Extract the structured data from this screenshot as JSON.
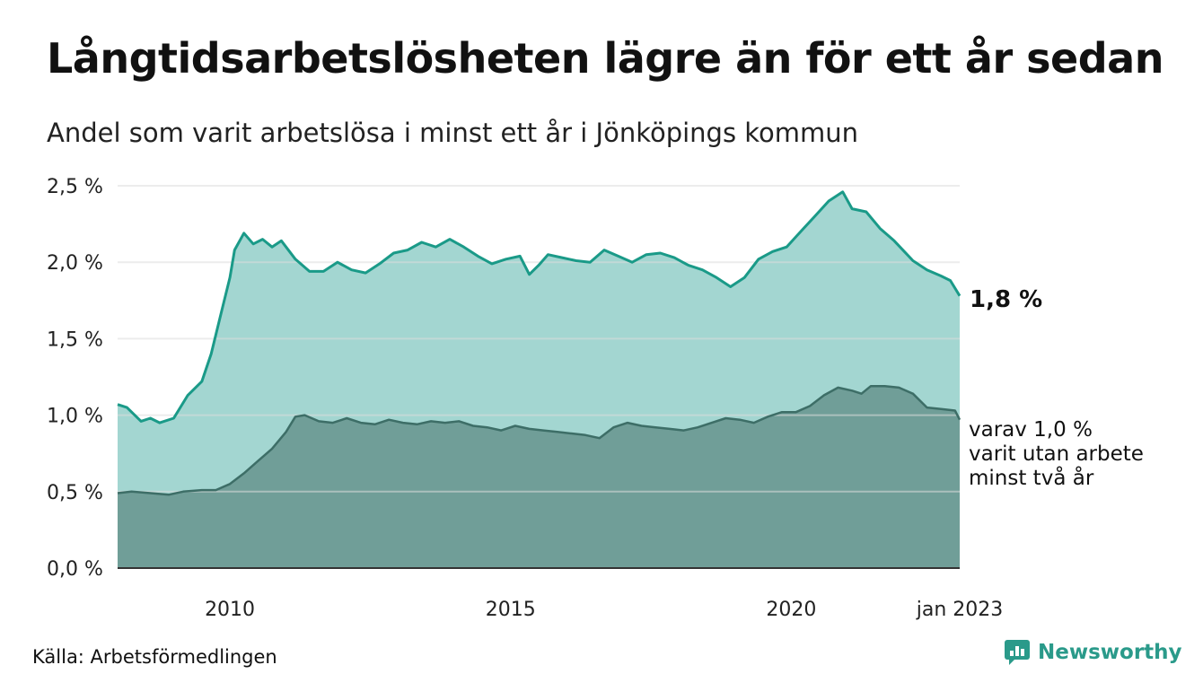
{
  "header": {
    "title": "Långtidsarbetslösheten lägre än för ett år sedan",
    "subtitle": "Andel som varit arbetslösa i minst ett år i Jönköpings kommun"
  },
  "footer": {
    "source": "Källa: Arbetsförmedlingen",
    "brand": "Newsworthy"
  },
  "colors": {
    "total_line": "#1a9a88",
    "total_fill": "#a3d6d1",
    "longterm_line": "#3d6e67",
    "longterm_fill": "#709e98",
    "grid": "#dddddd",
    "brand": "#2a9a8a"
  },
  "chart_data": {
    "type": "area",
    "x_start": "2008-01",
    "x_end": "2023-01",
    "ylim": [
      0,
      2.5
    ],
    "y_ticks": [
      {
        "value": 0.0,
        "label": "0,0 %"
      },
      {
        "value": 0.5,
        "label": "0,5 %"
      },
      {
        "value": 1.0,
        "label": "1,0 %"
      },
      {
        "value": 1.5,
        "label": "1,5 %"
      },
      {
        "value": 2.0,
        "label": "2,0 %"
      },
      {
        "value": 2.5,
        "label": "2,5 %"
      }
    ],
    "x_ticks": [
      {
        "date": "2010-01",
        "label": "2010"
      },
      {
        "date": "2015-01",
        "label": "2015"
      },
      {
        "date": "2020-01",
        "label": "2020"
      },
      {
        "date": "2023-01",
        "label": "jan 2023"
      }
    ],
    "grid": true,
    "series": [
      {
        "key": "total",
        "points": [
          [
            "2008-01",
            1.07
          ],
          [
            "2008-03",
            1.05
          ],
          [
            "2008-06",
            0.96
          ],
          [
            "2008-08",
            0.98
          ],
          [
            "2008-10",
            0.95
          ],
          [
            "2009-01",
            0.98
          ],
          [
            "2009-04",
            1.13
          ],
          [
            "2009-07",
            1.22
          ],
          [
            "2009-09",
            1.4
          ],
          [
            "2009-11",
            1.65
          ],
          [
            "2010-01",
            1.9
          ],
          [
            "2010-02",
            2.08
          ],
          [
            "2010-04",
            2.19
          ],
          [
            "2010-06",
            2.12
          ],
          [
            "2010-08",
            2.15
          ],
          [
            "2010-10",
            2.1
          ],
          [
            "2010-12",
            2.14
          ],
          [
            "2011-03",
            2.02
          ],
          [
            "2011-06",
            1.94
          ],
          [
            "2011-09",
            1.94
          ],
          [
            "2011-12",
            2.0
          ],
          [
            "2012-03",
            1.95
          ],
          [
            "2012-06",
            1.93
          ],
          [
            "2012-09",
            1.99
          ],
          [
            "2012-12",
            2.06
          ],
          [
            "2013-03",
            2.08
          ],
          [
            "2013-06",
            2.13
          ],
          [
            "2013-09",
            2.1
          ],
          [
            "2013-12",
            2.15
          ],
          [
            "2014-03",
            2.1
          ],
          [
            "2014-06",
            2.04
          ],
          [
            "2014-09",
            1.99
          ],
          [
            "2014-12",
            2.02
          ],
          [
            "2015-03",
            2.04
          ],
          [
            "2015-05",
            1.92
          ],
          [
            "2015-07",
            1.98
          ],
          [
            "2015-09",
            2.05
          ],
          [
            "2015-12",
            2.03
          ],
          [
            "2016-03",
            2.01
          ],
          [
            "2016-06",
            2.0
          ],
          [
            "2016-09",
            2.08
          ],
          [
            "2016-12",
            2.04
          ],
          [
            "2017-03",
            2.0
          ],
          [
            "2017-06",
            2.05
          ],
          [
            "2017-09",
            2.06
          ],
          [
            "2017-12",
            2.03
          ],
          [
            "2018-03",
            1.98
          ],
          [
            "2018-06",
            1.95
          ],
          [
            "2018-09",
            1.9
          ],
          [
            "2018-12",
            1.84
          ],
          [
            "2019-03",
            1.9
          ],
          [
            "2019-06",
            2.02
          ],
          [
            "2019-09",
            2.07
          ],
          [
            "2019-12",
            2.1
          ],
          [
            "2020-03",
            2.2
          ],
          [
            "2020-06",
            2.3
          ],
          [
            "2020-09",
            2.4
          ],
          [
            "2020-12",
            2.46
          ],
          [
            "2021-02",
            2.35
          ],
          [
            "2021-05",
            2.33
          ],
          [
            "2021-08",
            2.22
          ],
          [
            "2021-11",
            2.14
          ],
          [
            "2022-03",
            2.01
          ],
          [
            "2022-06",
            1.95
          ],
          [
            "2022-09",
            1.91
          ],
          [
            "2022-11",
            1.88
          ],
          [
            "2023-01",
            1.78
          ]
        ],
        "end_label": "1,8 %"
      },
      {
        "key": "longterm",
        "points": [
          [
            "2008-01",
            0.49
          ],
          [
            "2008-04",
            0.5
          ],
          [
            "2008-08",
            0.49
          ],
          [
            "2008-12",
            0.48
          ],
          [
            "2009-03",
            0.5
          ],
          [
            "2009-07",
            0.51
          ],
          [
            "2009-10",
            0.51
          ],
          [
            "2010-01",
            0.55
          ],
          [
            "2010-04",
            0.62
          ],
          [
            "2010-07",
            0.7
          ],
          [
            "2010-10",
            0.78
          ],
          [
            "2011-01",
            0.89
          ],
          [
            "2011-03",
            0.99
          ],
          [
            "2011-05",
            1.0
          ],
          [
            "2011-08",
            0.96
          ],
          [
            "2011-11",
            0.95
          ],
          [
            "2012-02",
            0.98
          ],
          [
            "2012-05",
            0.95
          ],
          [
            "2012-08",
            0.94
          ],
          [
            "2012-11",
            0.97
          ],
          [
            "2013-02",
            0.95
          ],
          [
            "2013-05",
            0.94
          ],
          [
            "2013-08",
            0.96
          ],
          [
            "2013-11",
            0.95
          ],
          [
            "2014-02",
            0.96
          ],
          [
            "2014-05",
            0.93
          ],
          [
            "2014-08",
            0.92
          ],
          [
            "2014-11",
            0.9
          ],
          [
            "2015-02",
            0.93
          ],
          [
            "2015-05",
            0.91
          ],
          [
            "2015-08",
            0.9
          ],
          [
            "2015-11",
            0.89
          ],
          [
            "2016-02",
            0.88
          ],
          [
            "2016-05",
            0.87
          ],
          [
            "2016-08",
            0.85
          ],
          [
            "2016-11",
            0.92
          ],
          [
            "2017-02",
            0.95
          ],
          [
            "2017-05",
            0.93
          ],
          [
            "2017-08",
            0.92
          ],
          [
            "2017-11",
            0.91
          ],
          [
            "2018-02",
            0.9
          ],
          [
            "2018-05",
            0.92
          ],
          [
            "2018-08",
            0.95
          ],
          [
            "2018-11",
            0.98
          ],
          [
            "2019-02",
            0.97
          ],
          [
            "2019-05",
            0.95
          ],
          [
            "2019-08",
            0.99
          ],
          [
            "2019-11",
            1.02
          ],
          [
            "2020-02",
            1.02
          ],
          [
            "2020-05",
            1.06
          ],
          [
            "2020-08",
            1.13
          ],
          [
            "2020-11",
            1.18
          ],
          [
            "2021-02",
            1.16
          ],
          [
            "2021-04",
            1.14
          ],
          [
            "2021-06",
            1.19
          ],
          [
            "2021-09",
            1.19
          ],
          [
            "2021-12",
            1.18
          ],
          [
            "2022-03",
            1.14
          ],
          [
            "2022-06",
            1.05
          ],
          [
            "2022-09",
            1.04
          ],
          [
            "2022-12",
            1.03
          ],
          [
            "2023-01",
            0.97
          ]
        ],
        "end_label": [
          "varav 1,0 %",
          "varit utan arbete",
          "minst två år"
        ]
      }
    ]
  }
}
